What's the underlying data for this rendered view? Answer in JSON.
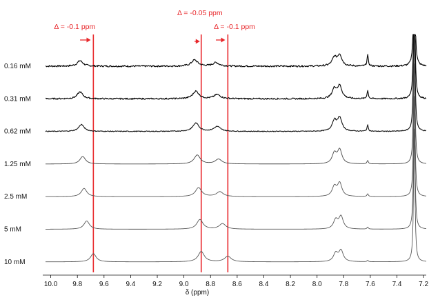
{
  "chart_data": {
    "type": "line",
    "title": "",
    "xlabel": "δ (ppm)",
    "ylabel": "",
    "x_reversed": true,
    "xlim": [
      10.06,
      7.18
    ],
    "xticks": [
      "10.0",
      "9.8",
      "9.6",
      "9.4",
      "9.2",
      "9.0",
      "8.8",
      "8.6",
      "8.4",
      "8.2",
      "8.0",
      "7.8",
      "7.6",
      "7.4",
      "7.2"
    ],
    "grid": false,
    "legend": "none",
    "series": [
      {
        "name": "0.16 mM",
        "line_color": "#000000",
        "noise": 1.2,
        "peaks": [
          [
            9.78,
            8,
            0.025
          ],
          [
            8.92,
            9,
            0.028
          ],
          [
            8.76,
            5,
            0.03
          ],
          [
            7.87,
            12,
            0.02
          ],
          [
            7.83,
            16,
            0.02
          ],
          [
            7.62,
            16,
            0.006
          ],
          [
            7.27,
            200,
            0.006
          ]
        ]
      },
      {
        "name": "0.31 mM",
        "line_color": "#000000",
        "noise": 1.0,
        "peaks": [
          [
            9.78,
            10,
            0.025
          ],
          [
            8.91,
            11,
            0.028
          ],
          [
            8.75,
            6,
            0.03
          ],
          [
            7.87,
            14,
            0.02
          ],
          [
            7.83,
            18,
            0.02
          ],
          [
            7.62,
            12,
            0.006
          ],
          [
            7.27,
            200,
            0.006
          ]
        ]
      },
      {
        "name": "0.62 mM",
        "line_color": "#111111",
        "noise": 0.6,
        "peaks": [
          [
            9.77,
            10,
            0.025
          ],
          [
            8.91,
            12,
            0.028
          ],
          [
            8.75,
            7,
            0.03
          ],
          [
            7.87,
            15,
            0.02
          ],
          [
            7.83,
            19,
            0.02
          ],
          [
            7.62,
            9,
            0.006
          ],
          [
            7.27,
            200,
            0.006
          ]
        ]
      },
      {
        "name": "1.25 mM",
        "line_color": "#444444",
        "noise": 0.0,
        "peaks": [
          [
            9.76,
            11,
            0.025
          ],
          [
            8.9,
            13,
            0.028
          ],
          [
            8.74,
            7,
            0.03
          ],
          [
            7.87,
            15,
            0.02
          ],
          [
            7.83,
            20,
            0.02
          ],
          [
            7.62,
            5,
            0.006
          ],
          [
            7.27,
            200,
            0.006
          ]
        ]
      },
      {
        "name": "2.5 mM",
        "line_color": "#555555",
        "noise": 0.0,
        "peaks": [
          [
            9.75,
            12,
            0.025
          ],
          [
            8.89,
            13,
            0.028
          ],
          [
            8.73,
            7,
            0.03
          ],
          [
            7.87,
            14,
            0.02
          ],
          [
            7.83,
            19,
            0.02
          ],
          [
            7.62,
            4,
            0.006
          ],
          [
            7.27,
            200,
            0.006
          ]
        ]
      },
      {
        "name": "5 mM",
        "line_color": "#555555",
        "noise": 0.0,
        "peaks": [
          [
            9.73,
            12,
            0.025
          ],
          [
            8.88,
            14,
            0.028
          ],
          [
            8.71,
            8,
            0.03
          ],
          [
            7.86,
            13,
            0.02
          ],
          [
            7.82,
            18,
            0.02
          ],
          [
            7.62,
            3,
            0.006
          ],
          [
            7.27,
            200,
            0.006
          ]
        ]
      },
      {
        "name": "10 mM",
        "line_color": "#555555",
        "noise": 0.0,
        "peaks": [
          [
            9.68,
            12,
            0.025
          ],
          [
            8.87,
            15,
            0.028
          ],
          [
            8.67,
            8,
            0.03
          ],
          [
            7.86,
            12,
            0.02
          ],
          [
            7.82,
            16,
            0.02
          ],
          [
            7.62,
            2,
            0.006
          ],
          [
            7.27,
            200,
            0.006
          ]
        ]
      }
    ],
    "reference_lines": [
      {
        "x": 9.68,
        "color": "#e8262a"
      },
      {
        "x": 8.87,
        "color": "#e8262a"
      },
      {
        "x": 8.67,
        "color": "#e8262a"
      }
    ],
    "annotations": [
      {
        "text": "Δ = -0.1 ppm",
        "ppm": 9.82,
        "color": "#e8262a",
        "row": "lower",
        "arrow": [
          9.78,
          9.7
        ]
      },
      {
        "text": "Δ = -0.05 ppm",
        "ppm": 8.88,
        "color": "#e8262a",
        "row": "upper",
        "arrow": [
          8.92,
          8.88
        ]
      },
      {
        "text": "Δ = -0.1 ppm",
        "ppm": 8.62,
        "color": "#e8262a",
        "row": "lower",
        "arrow": [
          8.76,
          8.69
        ]
      }
    ]
  }
}
